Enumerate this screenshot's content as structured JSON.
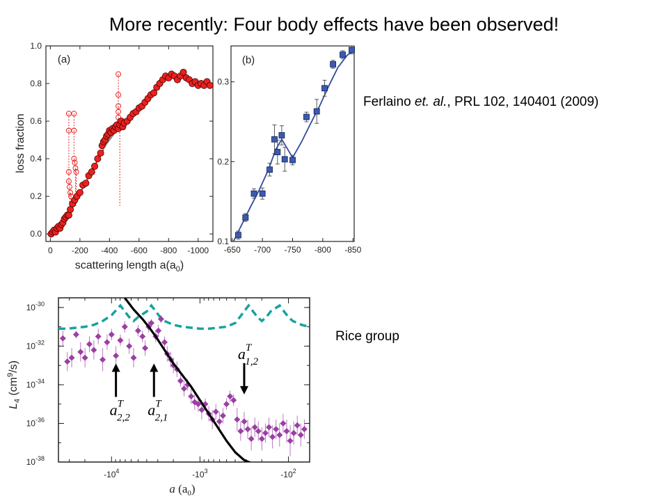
{
  "slide": {
    "title": "More recently: Four body effects have been observed!",
    "citation_prefix": "Ferlaino ",
    "citation_italic": "et. al.",
    "citation_suffix": ", PRL 102, 140401 (2009)",
    "rice_label": "Rice group"
  },
  "colors": {
    "panel_a_points": "#e8221f",
    "panel_b_points": "#3b5bb0",
    "panel_b_line": "#2f4aa0",
    "rice_points": "#9b3fa4",
    "rice_dashed": "#17a2a0",
    "rice_solid": "#000000"
  },
  "chart_data": [
    {
      "type": "scatter",
      "panel_label": "(a)",
      "xlabel": "scattering length a(a",
      "xlabel_sub": "0",
      "xlabel_close": ")",
      "ylabel": "loss fraction",
      "xlim": [
        30,
        -1100
      ],
      "ylim": [
        -0.04,
        1.0
      ],
      "xticks": [
        0,
        -200,
        -400,
        -600,
        -800,
        -1000
      ],
      "xtick_labels": [
        "0",
        "-200",
        "-400",
        "-600",
        "-800",
        "-1000"
      ],
      "yticks": [
        0.0,
        0.2,
        0.4,
        0.6,
        0.8,
        1.0
      ],
      "ytick_labels": [
        "0.0",
        "0.2",
        "0.4",
        "0.6",
        "0.8",
        "1.0"
      ],
      "series": [
        {
          "marker": "filled-circle",
          "x": [
            -5,
            -15,
            -25,
            -35,
            -45,
            -55,
            -65,
            -75,
            -85,
            -95,
            -105,
            -115,
            -125,
            -135,
            -150,
            -165,
            -180,
            -200,
            -220,
            -240,
            -260,
            -280,
            -300,
            -320,
            -340,
            -350,
            -360,
            -370,
            -380,
            -390,
            -400,
            -410,
            -420,
            -430,
            -440,
            -450,
            -460,
            -470,
            -480,
            -490,
            -500,
            -520,
            -540,
            -560,
            -580,
            -600,
            -620,
            -640,
            -660,
            -680,
            -700,
            -720,
            -740,
            -760,
            -780,
            -800,
            -820,
            -840,
            -860,
            -880,
            -900,
            -920,
            -940,
            -960,
            -980,
            -1000,
            -1020,
            -1040,
            -1060,
            -1080
          ],
          "y": [
            0.0,
            0.01,
            0.02,
            0.01,
            0.03,
            0.04,
            0.03,
            0.05,
            0.06,
            0.08,
            0.09,
            0.1,
            0.1,
            0.13,
            0.16,
            0.18,
            0.2,
            0.22,
            0.26,
            0.27,
            0.31,
            0.33,
            0.36,
            0.4,
            0.43,
            0.47,
            0.49,
            0.5,
            0.52,
            0.53,
            0.55,
            0.54,
            0.56,
            0.55,
            0.57,
            0.58,
            0.56,
            0.58,
            0.6,
            0.57,
            0.59,
            0.6,
            0.62,
            0.64,
            0.65,
            0.67,
            0.68,
            0.7,
            0.72,
            0.74,
            0.75,
            0.78,
            0.8,
            0.82,
            0.84,
            0.83,
            0.85,
            0.84,
            0.82,
            0.84,
            0.86,
            0.83,
            0.82,
            0.8,
            0.81,
            0.79,
            0.8,
            0.79,
            0.81,
            0.79
          ]
        },
        {
          "marker": "open-circle",
          "x": [
            -125,
            -125,
            -125,
            -125,
            -130,
            -135,
            -140,
            -160,
            -160,
            -160,
            -165,
            -170,
            -175,
            -460,
            -460,
            -460,
            -460,
            -460,
            -470
          ],
          "y": [
            0.64,
            0.55,
            0.33,
            0.28,
            0.25,
            0.22,
            0.2,
            0.64,
            0.55,
            0.4,
            0.38,
            0.35,
            0.33,
            0.85,
            0.74,
            0.68,
            0.65,
            0.62,
            0.6
          ]
        }
      ]
    },
    {
      "type": "scatter",
      "panel_label": "(b)",
      "xlim": [
        -648,
        -852
      ],
      "ylim": [
        0.1,
        0.345
      ],
      "xticks": [
        -650,
        -700,
        -750,
        -800,
        -850
      ],
      "xtick_labels": [
        "-650",
        "-700",
        "-750",
        "-800",
        "-850"
      ],
      "yticks": [
        0.1,
        0.2,
        0.3
      ],
      "ytick_labels": [
        "0.1",
        "0.2",
        "0.3"
      ],
      "series": [
        {
          "marker": "filled-square",
          "x": [
            -660,
            -672,
            -686,
            -700,
            -712,
            -720,
            -725,
            -732,
            -737,
            -750,
            -773,
            -790,
            -803,
            -817,
            -833,
            -848
          ],
          "y": [
            0.108,
            0.13,
            0.16,
            0.16,
            0.19,
            0.228,
            0.212,
            0.233,
            0.203,
            0.202,
            0.256,
            0.263,
            0.292,
            0.322,
            0.334,
            0.34
          ],
          "yerr": [
            0.005,
            0.005,
            0.006,
            0.007,
            0.008,
            0.018,
            0.015,
            0.012,
            0.015,
            0.006,
            0.006,
            0.015,
            0.01,
            0.005,
            0.005,
            0.005
          ]
        }
      ],
      "fit_line": {
        "x": [
          -652,
          -665,
          -680,
          -695,
          -710,
          -722,
          -732,
          -740,
          -750,
          -765,
          -780,
          -795,
          -810,
          -825,
          -840,
          -852
        ],
        "y": [
          0.1,
          0.12,
          0.143,
          0.165,
          0.19,
          0.215,
          0.228,
          0.218,
          0.205,
          0.225,
          0.248,
          0.27,
          0.295,
          0.318,
          0.333,
          0.34
        ]
      }
    },
    {
      "type": "scatter",
      "xlabel_var": "a",
      "xlabel_unit": "(a",
      "xlabel_sub": "0",
      "xlabel_close": ")",
      "ylabel_var": "L",
      "ylabel_sub": "4",
      "ylabel_unit": " (cm",
      "ylabel_sup": "9",
      "ylabel_close": "/s)",
      "x_scale": "log (negative a)",
      "xlim_log10_abs": [
        4.6,
        1.76
      ],
      "ylim_log10": [
        -38,
        -29.5
      ],
      "xticks_log10_abs": [
        4,
        3,
        2
      ],
      "xtick_labels": [
        "-10",
        "-10",
        "-10"
      ],
      "xtick_exps": [
        "4",
        "3",
        "2"
      ],
      "yticks_log10": [
        -38,
        -36,
        -34,
        -32,
        -30
      ],
      "ytick_labels": [
        "10",
        "10",
        "10",
        "10",
        "10"
      ],
      "ytick_exps": [
        "-38",
        "-36",
        "-34",
        "-32",
        "-30"
      ],
      "series": [
        {
          "name": "data",
          "marker": "filled-diamond",
          "x_log10_abs": [
            4.55,
            4.5,
            4.45,
            4.4,
            4.35,
            4.3,
            4.25,
            4.2,
            4.15,
            4.1,
            4.05,
            4.0,
            3.95,
            3.9,
            3.85,
            3.8,
            3.75,
            3.7,
            3.65,
            3.62,
            3.58,
            3.55,
            3.5,
            3.47,
            3.44,
            3.4,
            3.37,
            3.33,
            3.3,
            3.26,
            3.22,
            3.18,
            3.14,
            3.1,
            3.06,
            3.02,
            2.98,
            2.94,
            2.9,
            2.86,
            2.82,
            2.78,
            2.74,
            2.7,
            2.66,
            2.62,
            2.58,
            2.54,
            2.5,
            2.46,
            2.42,
            2.38,
            2.34,
            2.3,
            2.26,
            2.22,
            2.18,
            2.14,
            2.1,
            2.06,
            2.02,
            1.98,
            1.94,
            1.9,
            1.86,
            1.82
          ],
          "y_log10": [
            -31.6,
            -32.8,
            -32.6,
            -31.4,
            -32.3,
            -32.6,
            -31.9,
            -32.2,
            -31.5,
            -32.7,
            -31.8,
            -31.4,
            -32.5,
            -31.7,
            -31.0,
            -32.0,
            -32.6,
            -31.2,
            -31.5,
            -32.1,
            -31.0,
            -30.8,
            -31.5,
            -31.2,
            -30.6,
            -31.8,
            -32.4,
            -32.7,
            -33.0,
            -33.2,
            -33.8,
            -34.2,
            -34.0,
            -34.6,
            -34.9,
            -35.0,
            -35.3,
            -35.0,
            -35.5,
            -35.8,
            -35.4,
            -35.9,
            -35.6,
            -35.0,
            -34.6,
            -34.8,
            -35.8,
            -36.4,
            -35.9,
            -36.3,
            -36.8,
            -36.2,
            -36.4,
            -36.8,
            -36.5,
            -36.2,
            -36.7,
            -36.3,
            -36.6,
            -36.0,
            -36.4,
            -36.9,
            -36.5,
            -36.1,
            -36.6,
            -36.3
          ],
          "yerr_log10": [
            0.4,
            0.5,
            0.5,
            0.2,
            0.5,
            0.5,
            0.4,
            0.5,
            0.4,
            0.6,
            0.4,
            0.3,
            0.5,
            0.3,
            0.3,
            0.4,
            0.5,
            0.3,
            0.3,
            0.4,
            0.3,
            0.2,
            0.3,
            0.3,
            0.2,
            0.3,
            0.4,
            0.4,
            0.4,
            0.4,
            0.3,
            0.4,
            0.3,
            0.4,
            0.4,
            0.4,
            0.5,
            0.3,
            0.4,
            0.5,
            0.4,
            0.5,
            0.4,
            0.3,
            0.3,
            0.3,
            0.6,
            0.5,
            0.5,
            0.5,
            0.6,
            0.5,
            0.5,
            0.6,
            0.5,
            0.5,
            0.6,
            0.5,
            0.6,
            0.5,
            0.6,
            0.8,
            0.6,
            0.5,
            0.6,
            0.5
          ]
        },
        {
          "name": "dashed theory",
          "x_log10_abs": [
            4.6,
            4.5,
            4.4,
            4.3,
            4.2,
            4.1,
            4.0,
            3.9,
            3.85,
            3.8,
            3.75,
            3.7,
            3.6,
            3.55,
            3.5,
            3.45,
            3.4,
            3.3,
            3.2,
            3.1,
            3.0,
            2.9,
            2.8,
            2.7,
            2.6,
            2.55,
            2.5,
            2.45,
            2.4,
            2.35,
            2.3,
            2.25,
            2.2,
            2.1,
            2.05,
            2.0,
            1.95,
            1.9,
            1.85,
            1.76
          ],
          "y_log10": [
            -31.1,
            -31.1,
            -31.05,
            -31.0,
            -30.9,
            -30.7,
            -30.4,
            -29.9,
            -30.2,
            -30.5,
            -30.7,
            -30.5,
            -30.2,
            -29.9,
            -30.2,
            -30.5,
            -30.7,
            -30.9,
            -31.0,
            -31.05,
            -31.1,
            -31.1,
            -31.05,
            -31.0,
            -30.8,
            -30.5,
            -30.2,
            -29.9,
            -30.2,
            -30.5,
            -30.7,
            -30.5,
            -30.2,
            -29.9,
            -30.2,
            -30.5,
            -30.7,
            -30.8,
            -30.9,
            -31.0
          ]
        },
        {
          "name": "solid theory",
          "x_log10_abs": [
            3.85,
            3.75,
            3.65,
            3.58,
            3.5,
            3.4,
            3.3,
            3.2,
            3.1,
            3.0,
            2.9,
            2.8,
            2.7,
            2.6,
            2.5,
            2.45,
            2.4
          ],
          "y_log10": [
            -29.5,
            -30.1,
            -30.6,
            -31.0,
            -31.5,
            -32.2,
            -32.9,
            -33.5,
            -34.1,
            -34.8,
            -35.5,
            -36.2,
            -36.9,
            -37.5,
            -37.9,
            -38.0,
            -38.1
          ]
        }
      ],
      "arrows": [
        {
          "label": "a",
          "sup": "T",
          "sub": "2,2",
          "x_log10_abs": 3.95,
          "y_log10_tip": -32.9
        },
        {
          "label": "a",
          "sup": "T",
          "sub": "2,1",
          "x_log10_abs": 3.52,
          "y_log10_tip": -32.9
        },
        {
          "label": "a",
          "sup": "T",
          "sub": "1,2",
          "x_log10_abs": 2.5,
          "y_log10_tip": -34.5
        }
      ]
    }
  ]
}
